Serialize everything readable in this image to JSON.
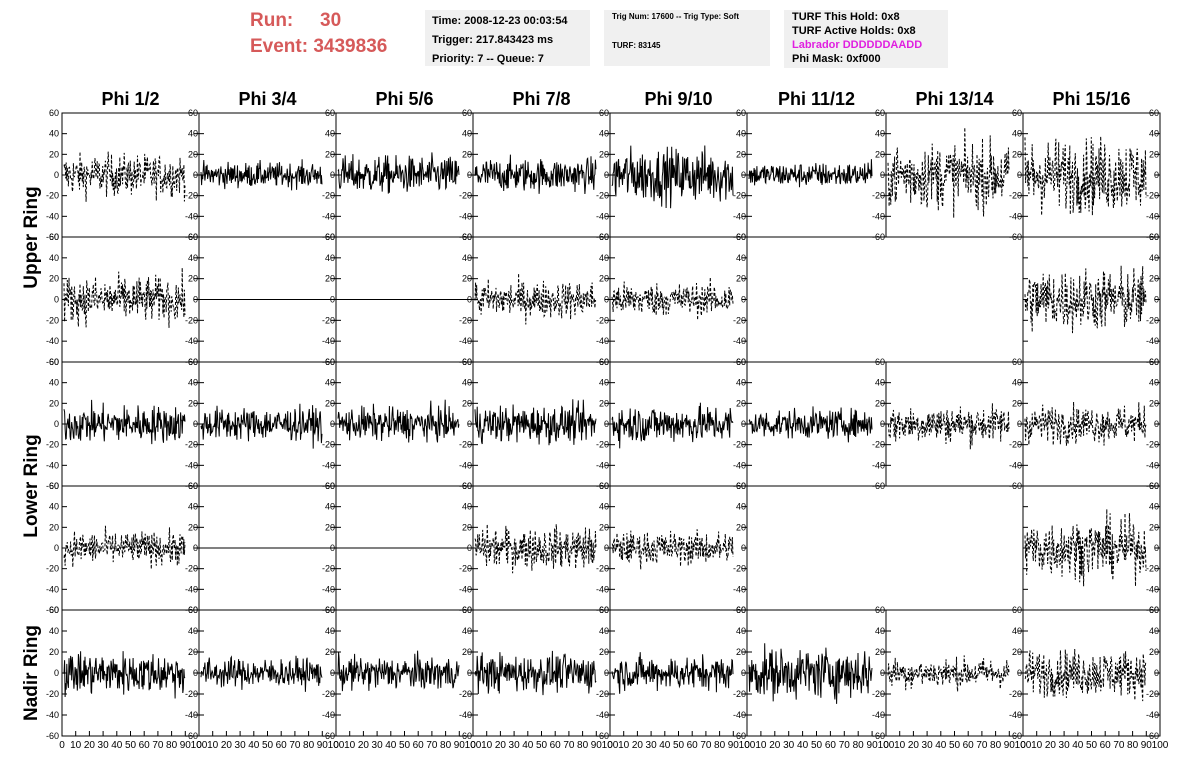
{
  "header": {
    "run_label": "Run:",
    "run_value": "30",
    "event_label": "Event:",
    "event_value": "3439836",
    "time": "Time: 2008-12-23 00:03:54",
    "trigger": "Trigger: 217.843423 ms",
    "priority": "Priority: 7 -- Queue: 7",
    "trig_num": "Trig Num: 17600 -- Trig Type: Soft",
    "turf": "TURF: 83145",
    "turf_hold": "TURF This Hold: 0x8",
    "turf_active": "TURF Active Holds: 0x8",
    "labrador": "Labrador DDDDDDAADD",
    "phi_mask": "Phi Mask: 0xf000"
  },
  "colors": {
    "accent_red": "#d65a5a",
    "labrador": "#e020e0",
    "info_bg": "#f0f0f0"
  },
  "chart_data": {
    "type": "line",
    "columns": [
      "Phi 1/2",
      "Phi 3/4",
      "Phi 5/6",
      "Phi 7/8",
      "Phi 9/10",
      "Phi 11/12",
      "Phi 13/14",
      "Phi 15/16"
    ],
    "ring_labels": [
      "Upper Ring",
      "Lower Ring",
      "Nadir Ring"
    ],
    "rows": 5,
    "ylim": [
      -60,
      60
    ],
    "yticks": [
      -60,
      -40,
      -20,
      0,
      20,
      40,
      60
    ],
    "xlim": [
      0,
      100
    ],
    "xticks": [
      0,
      10,
      20,
      30,
      40,
      50,
      60,
      70,
      80,
      90,
      100
    ],
    "grid": false,
    "panels": [
      [
        {
          "a": 10,
          "s": 1
        },
        {
          "a": 6,
          "s": 0
        },
        {
          "a": 9,
          "s": 0
        },
        {
          "a": 8,
          "s": 0
        },
        {
          "a": 13,
          "s": 0
        },
        {
          "a": 6,
          "s": 0
        },
        {
          "a": 16,
          "s": 1
        },
        {
          "a": 18,
          "s": 1
        }
      ],
      [
        {
          "a": 11,
          "s": 1
        },
        {
          "a": 0,
          "s": 0
        },
        {
          "a": 0,
          "s": 0
        },
        {
          "a": 9,
          "s": 1
        },
        {
          "a": 8,
          "s": 1
        },
        null,
        null,
        {
          "a": 15,
          "s": 1
        }
      ],
      [
        {
          "a": 9,
          "s": 0
        },
        {
          "a": 8,
          "s": 0
        },
        {
          "a": 8,
          "s": 0
        },
        {
          "a": 9,
          "s": 0
        },
        {
          "a": 9,
          "s": 0
        },
        {
          "a": 7,
          "s": 0
        },
        {
          "a": 9,
          "s": 1
        },
        {
          "a": 9,
          "s": 1
        }
      ],
      [
        {
          "a": 8,
          "s": 1
        },
        {
          "a": 0,
          "s": 0
        },
        {
          "a": 0,
          "s": 0
        },
        {
          "a": 10,
          "s": 1
        },
        {
          "a": 8,
          "s": 1
        },
        null,
        null,
        {
          "a": 14,
          "s": 1
        }
      ],
      [
        {
          "a": 10,
          "s": 0
        },
        {
          "a": 7,
          "s": 0
        },
        {
          "a": 8,
          "s": 0
        },
        {
          "a": 9,
          "s": 0
        },
        {
          "a": 8,
          "s": 0
        },
        {
          "a": 12,
          "s": 0
        },
        {
          "a": 7,
          "s": 1
        },
        {
          "a": 11,
          "s": 1
        }
      ]
    ]
  }
}
